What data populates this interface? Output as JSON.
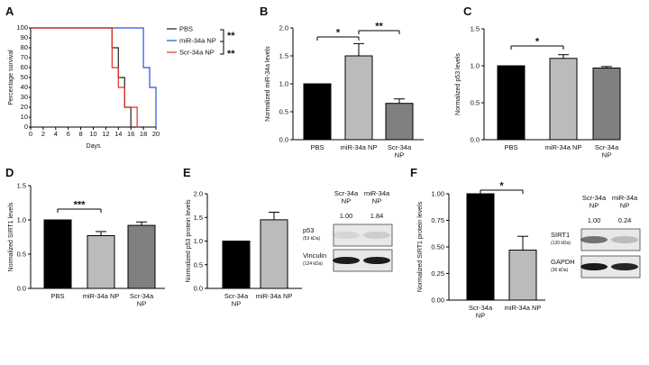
{
  "panels": {
    "A": {
      "letter": "A",
      "xlabel": "Days",
      "ylabel": "Percentage survival",
      "x_ticks": [
        "0",
        "2",
        "4",
        "6",
        "8",
        "10",
        "12",
        "14",
        "16",
        "18",
        "20"
      ],
      "y_ticks": [
        "0",
        "10",
        "20",
        "30",
        "40",
        "50",
        "60",
        "70",
        "80",
        "90",
        "100"
      ],
      "legend": [
        "PBS",
        "miR-34a NP",
        "Scr-34a NP"
      ],
      "significance": [
        "**",
        "**"
      ]
    },
    "B": {
      "letter": "B",
      "ylabel": "Normalized miR-34a levels",
      "y_ticks": [
        "0.0",
        "0.5",
        "1.0",
        "1.5",
        "2.0"
      ],
      "categories": [
        "PBS",
        "miR-34a NP",
        "Scr-34a\nNP"
      ],
      "significance": [
        "*",
        "**"
      ]
    },
    "C": {
      "letter": "C",
      "ylabel": "Normalized p53 levels",
      "y_ticks": [
        "0.0",
        "0.5",
        "1.0",
        "1.5"
      ],
      "categories": [
        "PBS",
        "miR-34a NP",
        "Scr-34a\nNP"
      ],
      "significance": [
        "*"
      ]
    },
    "D": {
      "letter": "D",
      "ylabel": "Normalized SIRT1 levels",
      "y_ticks": [
        "0.0",
        "0.5",
        "1.0",
        "1.5"
      ],
      "categories": [
        "PBS",
        "miR-34a NP",
        "Scr-34a\nNP"
      ],
      "significance": [
        "***"
      ]
    },
    "E": {
      "letter": "E",
      "ylabel": "Normalized p53 protein levels",
      "y_ticks": [
        "0.0",
        "0.5",
        "1.0",
        "1.5",
        "2.0"
      ],
      "categories": [
        "Scr-34a\nNP",
        "miR-34a NP"
      ],
      "blot": {
        "lanes": [
          "Scr-34a\nNP",
          "miR-34a\nNP"
        ],
        "quant": [
          "1.00",
          "1.84"
        ],
        "rows": [
          {
            "name": "p53",
            "kda": "(53 kDa)"
          },
          {
            "name": "Vinculin",
            "kda": "(124 kDa)"
          }
        ]
      }
    },
    "F": {
      "letter": "F",
      "ylabel": "Normalized SIRT1 protein levels",
      "y_ticks": [
        "0.00",
        "0.25",
        "0.50",
        "0.75",
        "1.00"
      ],
      "categories": [
        "Scr-34a\nNP",
        "miR-34a NP"
      ],
      "significance": [
        "*"
      ],
      "blot": {
        "lanes": [
          "Scr-34a\nNP",
          "miR-34a\nNP"
        ],
        "quant": [
          "1.00",
          "0.24"
        ],
        "rows": [
          {
            "name": "SIRT1",
            "kda": "(120 kDa)"
          },
          {
            "name": "GAPDH",
            "kda": "(36 kDa)"
          }
        ]
      }
    }
  },
  "chart_data": [
    {
      "type": "line",
      "panel": "A",
      "xlabel": "Days",
      "ylabel": "Percentage survival",
      "xlim": [
        0,
        20
      ],
      "ylim": [
        0,
        100
      ],
      "series": [
        {
          "name": "PBS",
          "color": "#222222",
          "x": [
            0,
            13,
            13,
            14,
            14,
            15,
            15,
            16,
            16,
            17,
            17,
            18
          ],
          "y": [
            100,
            100,
            80,
            80,
            50,
            50,
            20,
            20,
            0,
            0,
            0,
            0
          ]
        },
        {
          "name": "miR-34a NP",
          "color": "#2255dd",
          "x": [
            0,
            18,
            18,
            19,
            19,
            20,
            20
          ],
          "y": [
            100,
            100,
            60,
            60,
            40,
            40,
            0
          ]
        },
        {
          "name": "Scr-34a NP",
          "color": "#dd3322",
          "x": [
            0,
            13,
            13,
            14,
            14,
            15,
            15,
            16,
            16,
            17,
            17,
            17.5
          ],
          "y": [
            100,
            100,
            60,
            60,
            40,
            40,
            20,
            20,
            20,
            20,
            0,
            0
          ]
        }
      ]
    },
    {
      "type": "bar",
      "panel": "B",
      "ylabel": "Normalized miR-34a levels",
      "ylim": [
        0,
        2.0
      ],
      "categories": [
        "PBS",
        "miR-34a NP",
        "Scr-34a NP"
      ],
      "values": [
        1.0,
        1.5,
        0.65
      ],
      "errors": [
        0,
        0.22,
        0.08
      ],
      "colors": [
        "#000000",
        "#bbbbbb",
        "#808080"
      ]
    },
    {
      "type": "bar",
      "panel": "C",
      "ylabel": "Normalized p53 levels",
      "ylim": [
        0,
        1.5
      ],
      "categories": [
        "PBS",
        "miR-34a NP",
        "Scr-34a NP"
      ],
      "values": [
        1.0,
        1.1,
        0.97
      ],
      "errors": [
        0,
        0.05,
        0.02
      ],
      "colors": [
        "#000000",
        "#bbbbbb",
        "#808080"
      ]
    },
    {
      "type": "bar",
      "panel": "D",
      "ylabel": "Normalized SIRT1 levels",
      "ylim": [
        0,
        1.5
      ],
      "categories": [
        "PBS",
        "miR-34a NP",
        "Scr-34a NP"
      ],
      "values": [
        1.0,
        0.77,
        0.92
      ],
      "errors": [
        0,
        0.06,
        0.05
      ],
      "colors": [
        "#000000",
        "#bbbbbb",
        "#808080"
      ]
    },
    {
      "type": "bar",
      "panel": "E",
      "ylabel": "Normalized p53 protein levels",
      "ylim": [
        0,
        2.0
      ],
      "categories": [
        "Scr-34a NP",
        "miR-34a NP"
      ],
      "values": [
        1.0,
        1.45
      ],
      "errors": [
        0,
        0.16
      ],
      "colors": [
        "#000000",
        "#bbbbbb"
      ]
    },
    {
      "type": "bar",
      "panel": "F",
      "ylabel": "Normalized SIRT1 protein levels",
      "ylim": [
        0,
        1.0
      ],
      "categories": [
        "Scr-34a NP",
        "miR-34a NP"
      ],
      "values": [
        1.0,
        0.47
      ],
      "errors": [
        0,
        0.13
      ],
      "colors": [
        "#000000",
        "#bbbbbb"
      ]
    }
  ]
}
